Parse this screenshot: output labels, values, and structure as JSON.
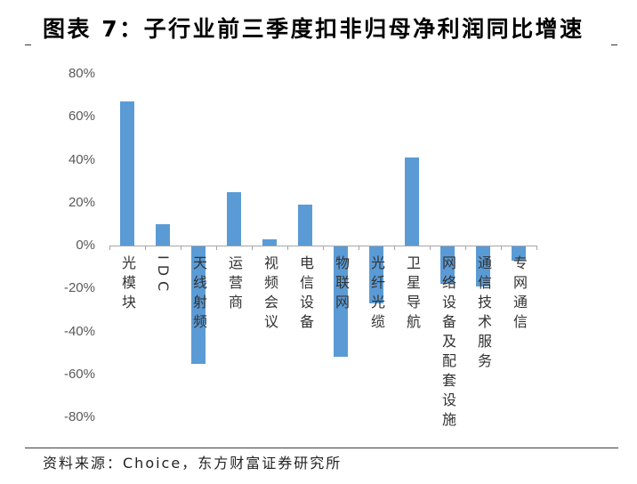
{
  "chart_data": {
    "type": "bar",
    "title": "图表 7：子行业前三季度扣非归母净利润同比增速",
    "xlabel": "",
    "ylabel": "",
    "categories": [
      "光模块",
      "IDC",
      "天线射频",
      "运营商",
      "视频会议",
      "电信设备",
      "物联网",
      "光纤光缆",
      "卫星导航",
      "网络设备及配套设施",
      "通信技术服务",
      "专网通信"
    ],
    "values": [
      67,
      10,
      -55,
      25,
      3,
      19,
      -52,
      -27,
      41,
      -18,
      -19,
      -7
    ],
    "unit": "%",
    "ylim": [
      -80,
      80
    ],
    "yticks": [
      80,
      60,
      40,
      20,
      0,
      -20,
      -40,
      -60,
      -80
    ],
    "ytick_labels": [
      "80%",
      "60%",
      "40%",
      "20%",
      "0%",
      "-20%",
      "-40%",
      "-60%",
      "-80%"
    ],
    "grid": false,
    "legend": false,
    "bar_color": "#5B9BD5"
  },
  "source": "资料来源：Choice，东方财富证券研究所"
}
